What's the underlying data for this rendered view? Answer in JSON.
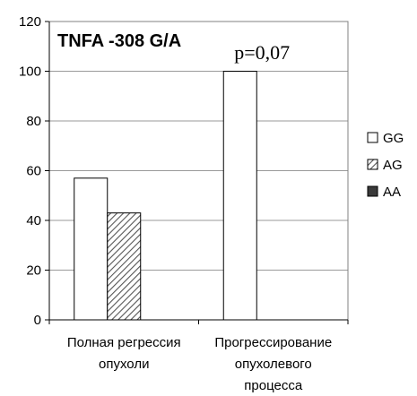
{
  "chart_data": {
    "type": "bar",
    "title": "TNFA -308 G/A",
    "categories": [
      "Полная регрессия опухоли",
      "Прогрессирование опухолевого процесса"
    ],
    "category_lines": [
      [
        "Полная регрессия",
        "опухоли"
      ],
      [
        "Прогрессирование",
        "опухолевого",
        "процесса"
      ]
    ],
    "series": [
      {
        "name": "GG",
        "values": [
          57,
          100
        ],
        "fill": "#ffffff"
      },
      {
        "name": "AG",
        "values": [
          43,
          0
        ],
        "fill": "hatch"
      },
      {
        "name": "AA",
        "values": [
          0,
          0
        ],
        "fill": "#3a3a3a"
      }
    ],
    "ylim": [
      0,
      120
    ],
    "yticks": [
      0,
      20,
      40,
      60,
      80,
      100,
      120
    ],
    "grid": true,
    "legend": "right",
    "annotations": [
      {
        "text": "p=0,07",
        "category_index": 1
      }
    ]
  }
}
